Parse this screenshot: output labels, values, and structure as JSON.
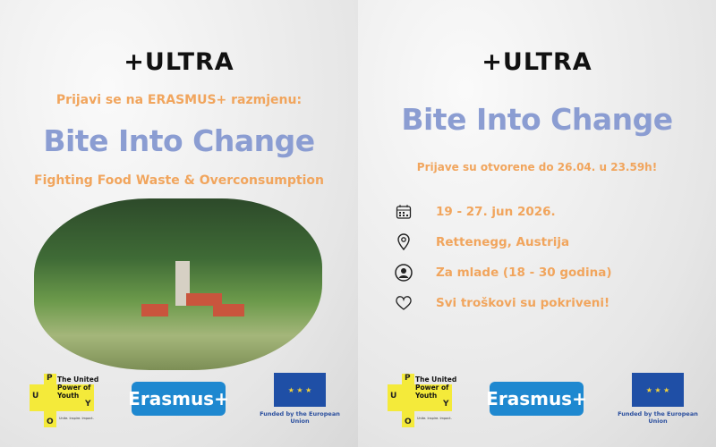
{
  "brand": "+ULTRA",
  "left": {
    "intro": "Prijavi se na ERASMUS+ razmjenu:",
    "title": "Bite Into Change",
    "subtitle": "Fighting Food Waste & Overconsumption"
  },
  "right": {
    "title": "Bite Into Change",
    "deadline": "Prijave su otvorene do 26.04. u 23.59h!",
    "items": [
      {
        "icon": "calendar-icon",
        "text": "19 - 27.  jun 2026."
      },
      {
        "icon": "location-pin-icon",
        "text": "Rettenegg, Austrija"
      },
      {
        "icon": "person-icon",
        "text": "Za mlade (18 - 30 godina)"
      },
      {
        "icon": "heart-icon",
        "text": "Svi troškovi su pokriveni!"
      }
    ]
  },
  "logos": {
    "puoy_name": "The United Power of Youth",
    "puoy_letters": [
      "P",
      "U",
      "Y",
      "O"
    ],
    "puoy_tagline": "Unite. Inspire. Impact.",
    "erasmus": "Erasmus+",
    "eu_caption": "Funded by the European Union"
  },
  "colors": {
    "orange": "#f1a55d",
    "title": "#8b9dd2",
    "erasmus": "#1e88d0",
    "eu": "#1f4fa6",
    "puoy": "#f4ea3a"
  }
}
